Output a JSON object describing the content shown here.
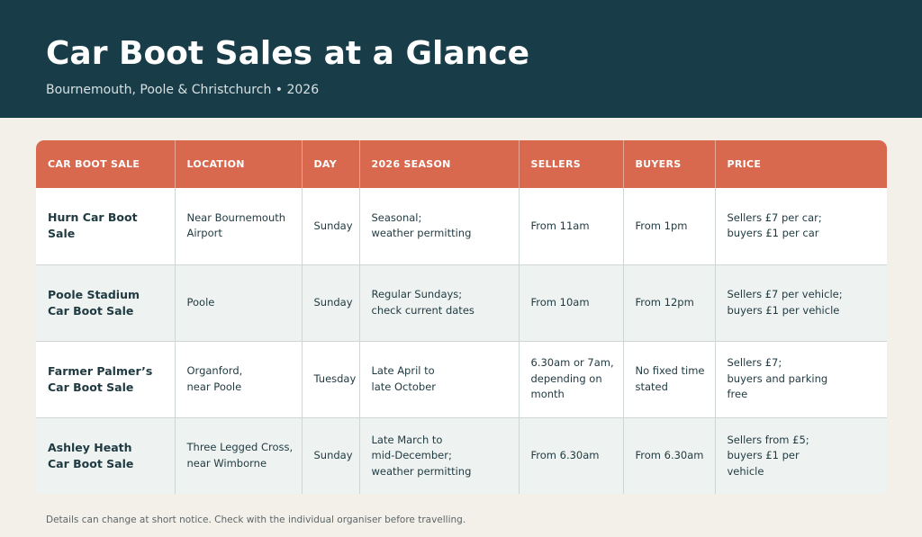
{
  "header": {
    "title": "Car Boot Sales at a Glance",
    "subtitle": "Bournemouth, Poole & Christchurch • 2026"
  },
  "table": {
    "columns": [
      "CAR BOOT SALE",
      "LOCATION",
      "DAY",
      "2026 SEASON",
      "SELLERS",
      "BUYERS",
      "PRICE"
    ],
    "rows": [
      {
        "name": "Hurn Car Boot\nSale",
        "location": "Near Bournemouth\nAirport",
        "day": "Sunday",
        "season": "Seasonal;\nweather permitting",
        "sellers": "From 11am",
        "buyers": "From 1pm",
        "price": "Sellers £7 per car;\nbuyers £1 per car"
      },
      {
        "name": "Poole Stadium\nCar Boot Sale",
        "location": "Poole",
        "day": "Sunday",
        "season": "Regular Sundays;\ncheck current dates",
        "sellers": "From 10am",
        "buyers": "From 12pm",
        "price": "Sellers £7 per vehicle;\nbuyers £1 per vehicle"
      },
      {
        "name": "Farmer Palmer’s\nCar Boot Sale",
        "location": "Organford,\nnear Poole",
        "day": "Tuesday",
        "season": "Late April to\nlate October",
        "sellers": "6.30am or 7am,\ndepending on\nmonth",
        "buyers": "No fixed time\nstated",
        "price": "Sellers £7;\nbuyers and parking\nfree"
      },
      {
        "name": "Ashley Heath\nCar Boot Sale",
        "location": "Three Legged Cross,\nnear Wimborne",
        "day": "Sunday",
        "season": "Late March to\nmid-December;\nweather permitting",
        "sellers": "From 6.30am",
        "buyers": "From 6.30am",
        "price": "Sellers from £5;\nbuyers £1 per\nvehicle"
      }
    ]
  },
  "footnote": "Details can change at short notice. Check with the individual organiser before travelling.",
  "colors": {
    "header_bg": "#183d49",
    "table_header_bg": "#d8684e",
    "page_bg": "#f3f0ea",
    "row_alt_bg": "#eef3f1"
  }
}
